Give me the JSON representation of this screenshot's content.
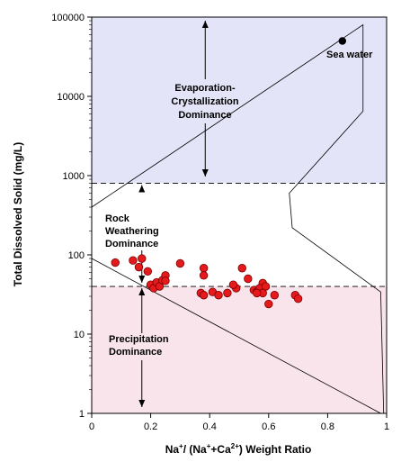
{
  "chart_data": {
    "type": "scatter",
    "title": "",
    "xlabel": "Na⁺/ (Na⁺+Ca²⁺) Weight Ratio",
    "ylabel": "Total Dissolved Solid (mg/L)",
    "xlim": [
      0,
      1
    ],
    "ylim": [
      1,
      100000
    ],
    "yscale": "log",
    "grid": false,
    "x_ticks": [
      0,
      0.2,
      0.4,
      0.6,
      0.8,
      1
    ],
    "x_tick_labels": [
      "0",
      "0.2",
      "0.4",
      "0.6",
      "0.8",
      "1"
    ],
    "y_ticks": [
      1,
      10,
      100,
      1000,
      10000,
      100000
    ],
    "y_tick_labels": [
      "1",
      "10",
      "100",
      "1000",
      "10000",
      "100000"
    ],
    "regions": [
      {
        "label": "Evaporation-\nCrystallization\nDominance",
        "y_from": 800,
        "y_to": 100000,
        "color": "#e4e4f8"
      },
      {
        "label": "Rock\nWeathering\nDominance",
        "y_from": 40,
        "y_to": 800,
        "color": "#ffffff"
      },
      {
        "label": "Precipitation\nDominance",
        "y_from": 1,
        "y_to": 40,
        "color": "#f9e4ec"
      }
    ],
    "boundaries": [
      800,
      40
    ],
    "envelope_upper": [
      [
        0,
        400
      ],
      [
        0.92,
        80000
      ],
      [
        0.92,
        6500
      ],
      [
        0.67,
        600
      ],
      [
        0.68,
        220
      ],
      [
        0.98,
        34
      ],
      [
        0.99,
        1
      ]
    ],
    "envelope_lower": [
      [
        0,
        90
      ],
      [
        0.98,
        1
      ]
    ],
    "sea_water": {
      "label": "Sea water",
      "x": 0.85,
      "y": 50000,
      "color": "#000000"
    },
    "series": [
      {
        "color": "#e41a1c",
        "x": [
          0.08,
          0.14,
          0.17,
          0.16,
          0.19,
          0.2,
          0.21,
          0.22,
          0.23,
          0.24,
          0.25,
          0.25,
          0.3,
          0.38,
          0.38,
          0.41,
          0.37,
          0.38,
          0.43,
          0.46,
          0.49,
          0.48,
          0.51,
          0.53,
          0.55,
          0.56,
          0.58,
          0.57,
          0.59,
          0.62,
          0.58,
          0.6,
          0.56,
          0.69,
          0.7
        ],
        "y": [
          80,
          85,
          90,
          70,
          62,
          42,
          38,
          45,
          40,
          48,
          55,
          47,
          78,
          68,
          55,
          34,
          33,
          31,
          31,
          33,
          38,
          42,
          68,
          50,
          36,
          34,
          44,
          38,
          40,
          31,
          33,
          24,
          33,
          31,
          28
        ]
      }
    ]
  },
  "labels": {
    "evaporation": [
      "Evaporation-",
      "Crystallization",
      "Dominance"
    ],
    "rock": [
      "Rock",
      "Weathering",
      "Dominance"
    ],
    "precipitation": [
      "Precipitation",
      "Dominance"
    ],
    "sea_water": "Sea water"
  },
  "axis": {
    "xlabel_main": "Na",
    "xlabel_sup1": "+",
    "xlabel_mid": "/ (Na",
    "xlabel_sup2": "+",
    "xlabel_mid2": "+Ca",
    "xlabel_sup3": "2+",
    "xlabel_end": ") Weight Ratio",
    "ylabel": "Total Dissolved Solid (mg/L)"
  }
}
